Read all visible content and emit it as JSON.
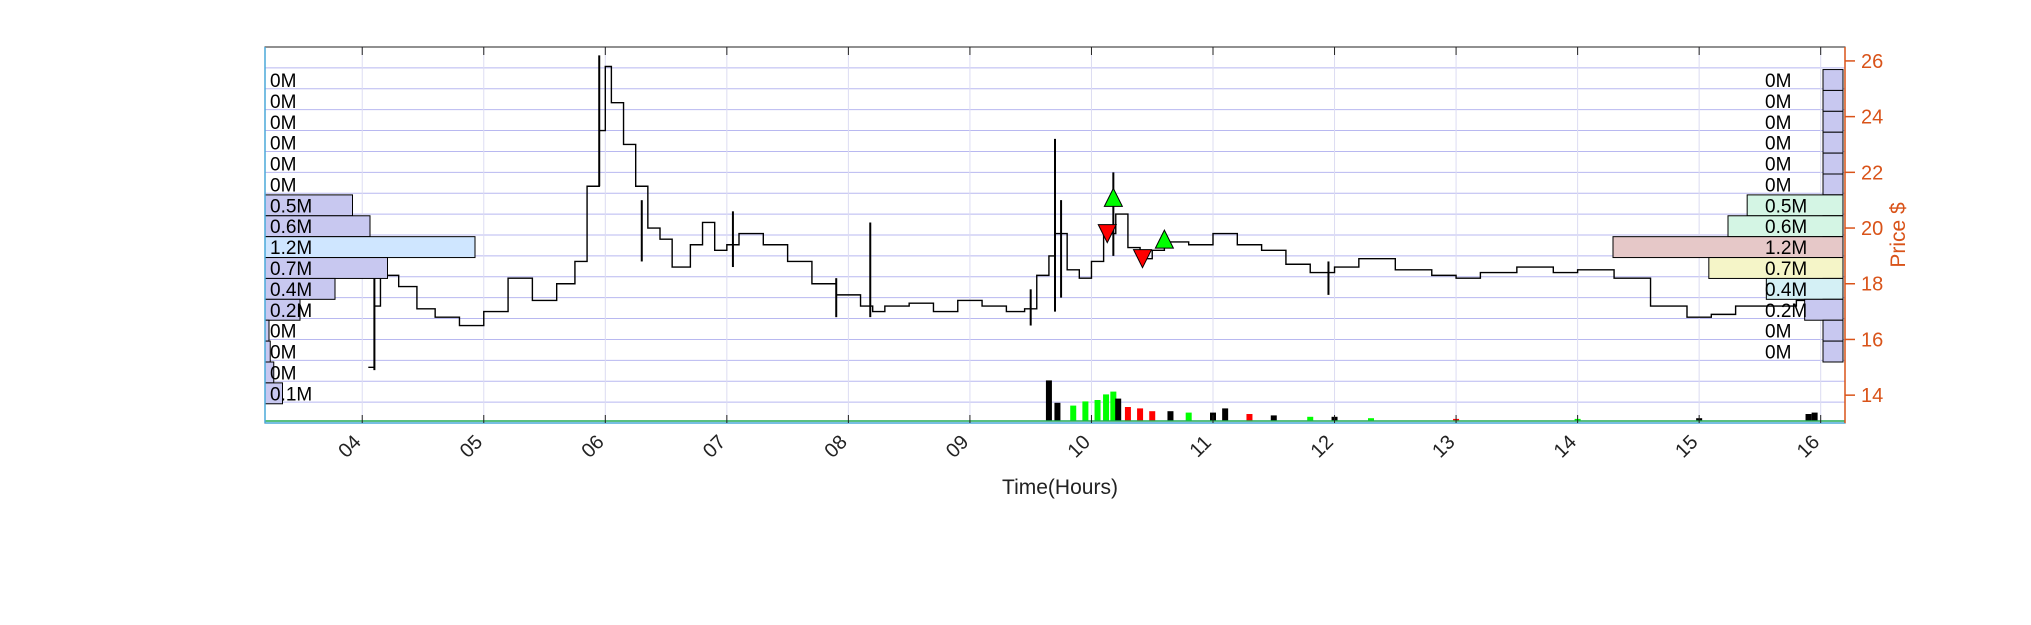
{
  "chart_data": {
    "type": "candlestick-with-volume-profile",
    "xlabel": "Time(Hours)",
    "ylabel": "Price $",
    "xlim": [
      3.2,
      16.2
    ],
    "ylim": [
      13,
      26.5
    ],
    "x_ticks": [
      "04",
      "05",
      "06",
      "07",
      "08",
      "09",
      "10",
      "11",
      "12",
      "13",
      "14",
      "15",
      "16"
    ],
    "y_ticks": [
      14,
      16,
      18,
      20,
      22,
      24,
      26
    ],
    "grid": true,
    "colors": {
      "price_axis": "#d95319",
      "grid": "#b8b8f0",
      "border": "#2a6fb0",
      "buy": "#00ff00",
      "sell": "#ff0000"
    },
    "price_bins": [
      25.8,
      25.0,
      24.2,
      23.4,
      22.6,
      21.8,
      21.0,
      20.2,
      19.4,
      18.6,
      17.8,
      17.0,
      16.2,
      15.4,
      14.6,
      13.8
    ],
    "left_profile": {
      "labels": [
        "0M",
        "0M",
        "0M",
        "0M",
        "0M",
        "0M",
        "0.5M",
        "0.6M",
        "1.2M",
        "0.7M",
        "0.4M",
        "0.2M",
        "0M",
        "0M",
        "0M",
        "0.1M"
      ],
      "values": [
        0,
        0,
        0,
        0,
        0,
        0,
        0.5,
        0.6,
        1.2,
        0.7,
        0.4,
        0.2,
        0.02,
        0.03,
        0.05,
        0.1
      ],
      "colors": [
        "#c8c8f0",
        "#c8c8f0",
        "#c8c8f0",
        "#c8c8f0",
        "#c8c8f0",
        "#c8c8f0",
        "#c8c8f0",
        "#c8c8f0",
        "#cfe6ff",
        "#c8c8f0",
        "#c8c8f0",
        "#c8c8f0",
        "#c8c8f0",
        "#c8c8f0",
        "#c8c8f0",
        "#c8c8f0"
      ]
    },
    "right_profile": {
      "labels": [
        "0M",
        "0M",
        "0M",
        "0M",
        "0M",
        "0M",
        "0.5M",
        "0.6M",
        "1.2M",
        "0.7M",
        "0.4M",
        "0.2M",
        "0M",
        "0M",
        "",
        ""
      ],
      "values": [
        0,
        0,
        0,
        0,
        0,
        0,
        0.5,
        0.6,
        1.2,
        0.7,
        0.4,
        0.2,
        0,
        0,
        0,
        0
      ],
      "colors": [
        "#c8c8f0",
        "#c8c8f0",
        "#c8c8f0",
        "#c8c8f0",
        "#c8c8f0",
        "#c8c8f0",
        "#d4f5e4",
        "#d4f5e4",
        "#e6c8c8",
        "#f5f5c8",
        "#d4f0f5",
        "#c8c8f0",
        "#c8c8f0",
        "#c8c8f0",
        "#c8c8f0",
        "#c8c8f0"
      ]
    },
    "price_series": [
      [
        4.05,
        15.0
      ],
      [
        4.1,
        17.2
      ],
      [
        4.15,
        18.7
      ],
      [
        4.2,
        18.3
      ],
      [
        4.3,
        17.9
      ],
      [
        4.45,
        17.1
      ],
      [
        4.6,
        16.8
      ],
      [
        4.8,
        16.5
      ],
      [
        5.0,
        17.0
      ],
      [
        5.2,
        18.2
      ],
      [
        5.4,
        17.4
      ],
      [
        5.6,
        18.0
      ],
      [
        5.75,
        18.8
      ],
      [
        5.85,
        21.5
      ],
      [
        5.95,
        23.5
      ],
      [
        6.0,
        25.8
      ],
      [
        6.05,
        24.5
      ],
      [
        6.15,
        23.0
      ],
      [
        6.25,
        21.5
      ],
      [
        6.35,
        20.0
      ],
      [
        6.45,
        19.6
      ],
      [
        6.55,
        18.6
      ],
      [
        6.7,
        19.4
      ],
      [
        6.8,
        20.2
      ],
      [
        6.9,
        19.2
      ],
      [
        7.0,
        19.4
      ],
      [
        7.1,
        19.8
      ],
      [
        7.3,
        19.4
      ],
      [
        7.5,
        18.8
      ],
      [
        7.7,
        18.0
      ],
      [
        7.9,
        17.6
      ],
      [
        8.1,
        17.2
      ],
      [
        8.2,
        17.0
      ],
      [
        8.3,
        17.2
      ],
      [
        8.5,
        17.3
      ],
      [
        8.7,
        17.0
      ],
      [
        8.9,
        17.4
      ],
      [
        9.1,
        17.2
      ],
      [
        9.3,
        17.0
      ],
      [
        9.45,
        17.1
      ],
      [
        9.55,
        18.3
      ],
      [
        9.65,
        19.0
      ],
      [
        9.7,
        19.8
      ],
      [
        9.8,
        18.5
      ],
      [
        9.9,
        18.2
      ],
      [
        10.0,
        18.8
      ],
      [
        10.1,
        19.8
      ],
      [
        10.2,
        20.5
      ],
      [
        10.3,
        19.3
      ],
      [
        10.4,
        18.9
      ],
      [
        10.5,
        19.2
      ],
      [
        10.6,
        19.5
      ],
      [
        10.8,
        19.4
      ],
      [
        11.0,
        19.8
      ],
      [
        11.2,
        19.4
      ],
      [
        11.4,
        19.2
      ],
      [
        11.6,
        18.7
      ],
      [
        11.8,
        18.4
      ],
      [
        12.0,
        18.6
      ],
      [
        12.2,
        18.9
      ],
      [
        12.5,
        18.5
      ],
      [
        12.8,
        18.3
      ],
      [
        13.0,
        18.2
      ],
      [
        13.2,
        18.4
      ],
      [
        13.5,
        18.6
      ],
      [
        13.8,
        18.4
      ],
      [
        14.0,
        18.5
      ],
      [
        14.3,
        18.2
      ],
      [
        14.6,
        17.2
      ],
      [
        14.9,
        16.8
      ],
      [
        15.1,
        16.9
      ],
      [
        15.3,
        17.2
      ],
      [
        15.6,
        17.2
      ],
      [
        15.8,
        17.4
      ],
      [
        16.0,
        19.0
      ]
    ],
    "spikes": [
      [
        4.1,
        14.9,
        19.6
      ],
      [
        5.95,
        21.5,
        26.2
      ],
      [
        6.3,
        18.8,
        21.0
      ],
      [
        7.05,
        18.6,
        20.6
      ],
      [
        7.9,
        16.8,
        18.2
      ],
      [
        8.18,
        16.8,
        20.2
      ],
      [
        9.5,
        16.5,
        17.8
      ],
      [
        9.7,
        17.0,
        23.2
      ],
      [
        9.75,
        17.5,
        21.0
      ],
      [
        10.18,
        19.0,
        22.0
      ],
      [
        11.95,
        17.6,
        18.8
      ]
    ],
    "markers": [
      {
        "type": "buy",
        "x": 10.18,
        "y": 21.1
      },
      {
        "type": "buy",
        "x": 10.6,
        "y": 19.6
      },
      {
        "type": "sell",
        "x": 10.13,
        "y": 19.8
      },
      {
        "type": "sell",
        "x": 10.42,
        "y": 18.9
      }
    ],
    "volume_bars": [
      [
        9.65,
        2.9,
        "#000000"
      ],
      [
        9.72,
        1.3,
        "#000000"
      ],
      [
        9.85,
        1.1,
        "#00ff00"
      ],
      [
        9.95,
        1.4,
        "#00ff00"
      ],
      [
        10.05,
        1.5,
        "#00ff00"
      ],
      [
        10.12,
        1.9,
        "#00ff00"
      ],
      [
        10.18,
        2.1,
        "#00ff00"
      ],
      [
        10.22,
        1.6,
        "#000000"
      ],
      [
        10.3,
        1.0,
        "#ff0000"
      ],
      [
        10.4,
        0.9,
        "#ff0000"
      ],
      [
        10.5,
        0.7,
        "#ff0000"
      ],
      [
        10.65,
        0.7,
        "#000000"
      ],
      [
        10.8,
        0.6,
        "#00ff00"
      ],
      [
        11.0,
        0.6,
        "#000000"
      ],
      [
        11.1,
        0.9,
        "#000000"
      ],
      [
        11.3,
        0.5,
        "#ff0000"
      ],
      [
        11.5,
        0.4,
        "#000000"
      ],
      [
        11.8,
        0.3,
        "#00ff00"
      ],
      [
        12.0,
        0.3,
        "#000000"
      ],
      [
        12.3,
        0.2,
        "#00ff00"
      ],
      [
        13.0,
        0.15,
        "#ff0000"
      ],
      [
        14.0,
        0.15,
        "#00ff00"
      ],
      [
        15.0,
        0.2,
        "#000000"
      ],
      [
        15.9,
        0.5,
        "#000000"
      ],
      [
        15.95,
        0.6,
        "#000000"
      ]
    ]
  }
}
